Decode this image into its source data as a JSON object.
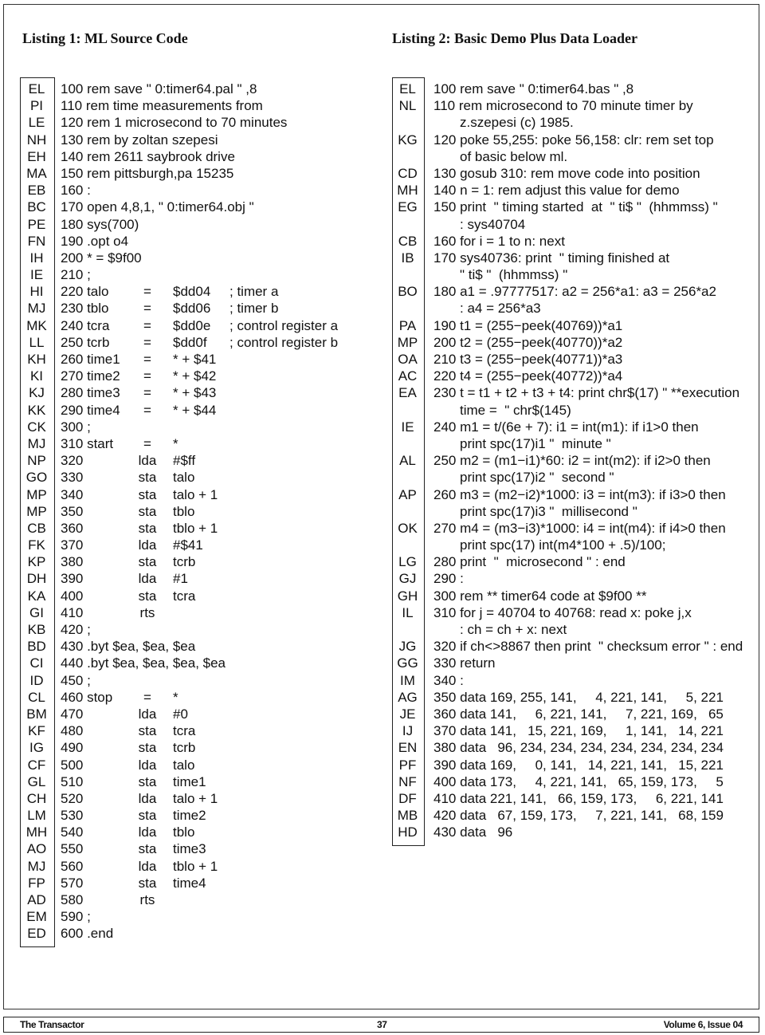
{
  "listing1": {
    "title": "Listing 1: ML Source Code",
    "rows": [
      {
        "cs": "EL",
        "t": "100 rem save \" 0:timer64.pal \" ,8"
      },
      {
        "cs": "PI",
        "t": "110 rem time measurements from"
      },
      {
        "cs": "LE",
        "t": "120 rem 1 microsecond to 70 minutes"
      },
      {
        "cs": "NH",
        "t": "130 rem by zoltan szepesi"
      },
      {
        "cs": "EH",
        "t": "140 rem 2611 saybrook drive"
      },
      {
        "cs": "MA",
        "t": "150 rem pittsburgh,pa 15235"
      },
      {
        "cs": "EB",
        "t": "160 :"
      },
      {
        "cs": "BC",
        "t": "170 open 4,8,1, \" 0:timer64.obj \""
      },
      {
        "cs": "PE",
        "t": "180 sys(700)"
      },
      {
        "cs": "FN",
        "t": "190 .opt o4"
      },
      {
        "cs": "IH",
        "t": "200 * = $9f00"
      },
      {
        "cs": "IE",
        "t": "210 ;"
      },
      {
        "cs": "HI",
        "t": "220 talo",
        "op": "=",
        "arg": "$dd04",
        "cm": "; timer a"
      },
      {
        "cs": "MJ",
        "t": "230 tblo",
        "op": "=",
        "arg": "$dd06",
        "cm": "; timer b"
      },
      {
        "cs": "MK",
        "t": "240 tcra",
        "op": "=",
        "arg": "$dd0e",
        "cm": "; control register a"
      },
      {
        "cs": "LL",
        "t": "250 tcrb",
        "op": "=",
        "arg": "$dd0f",
        "cm": "; control register b"
      },
      {
        "cs": "KH",
        "t": "260 time1",
        "op": "=",
        "arg": "* + $41"
      },
      {
        "cs": "KI",
        "t": "270 time2",
        "op": "=",
        "arg": "* + $42"
      },
      {
        "cs": "KJ",
        "t": "280 time3",
        "op": "=",
        "arg": "* + $43"
      },
      {
        "cs": "KK",
        "t": "290 time4",
        "op": "=",
        "arg": "* + $44"
      },
      {
        "cs": "CK",
        "t": "300 ;"
      },
      {
        "cs": "MJ",
        "t": "310 start",
        "op": "=",
        "arg": "*"
      },
      {
        "cs": "NP",
        "t": "320",
        "op": "lda",
        "arg": "#$ff"
      },
      {
        "cs": "GO",
        "t": "330",
        "op": "sta",
        "arg": "talo"
      },
      {
        "cs": "MP",
        "t": "340",
        "op": "sta",
        "arg": "talo + 1"
      },
      {
        "cs": "MP",
        "t": "350",
        "op": "sta",
        "arg": "tblo"
      },
      {
        "cs": "CB",
        "t": "360",
        "op": "sta",
        "arg": "tblo + 1"
      },
      {
        "cs": "FK",
        "t": "370",
        "op": "lda",
        "arg": "#$41"
      },
      {
        "cs": "KP",
        "t": "380",
        "op": "sta",
        "arg": "tcrb"
      },
      {
        "cs": "DH",
        "t": "390",
        "op": "lda",
        "arg": "#1"
      },
      {
        "cs": "KA",
        "t": "400",
        "op": "sta",
        "arg": "tcra"
      },
      {
        "cs": "GI",
        "t": "410",
        "op": "rts"
      },
      {
        "cs": "KB",
        "t": "420 ;"
      },
      {
        "cs": "BD",
        "t": "430 .byt $ea, $ea, $ea"
      },
      {
        "cs": "CI",
        "t": "440 .byt $ea, $ea, $ea, $ea"
      },
      {
        "cs": "ID",
        "t": "450 ;"
      },
      {
        "cs": "CL",
        "t": "460 stop",
        "op": "=",
        "arg": "*"
      },
      {
        "cs": "BM",
        "t": "470",
        "op": "lda",
        "arg": "#0"
      },
      {
        "cs": "KF",
        "t": "480",
        "op": "sta",
        "arg": "tcra"
      },
      {
        "cs": "IG",
        "t": "490",
        "op": "sta",
        "arg": "tcrb"
      },
      {
        "cs": "CF",
        "t": "500",
        "op": "lda",
        "arg": "talo"
      },
      {
        "cs": "GL",
        "t": "510",
        "op": "sta",
        "arg": "time1"
      },
      {
        "cs": "CH",
        "t": "520",
        "op": "lda",
        "arg": "talo + 1"
      },
      {
        "cs": "LM",
        "t": "530",
        "op": "sta",
        "arg": "time2"
      },
      {
        "cs": "MH",
        "t": "540",
        "op": "lda",
        "arg": "tblo"
      },
      {
        "cs": "AO",
        "t": "550",
        "op": "sta",
        "arg": "time3"
      },
      {
        "cs": "MJ",
        "t": "560",
        "op": "lda",
        "arg": "tblo + 1"
      },
      {
        "cs": "FP",
        "t": "570",
        "op": "sta",
        "arg": "time4"
      },
      {
        "cs": "AD",
        "t": "580",
        "op": "rts"
      },
      {
        "cs": "EM",
        "t": "590 ;"
      },
      {
        "cs": "ED",
        "t": "600 .end"
      }
    ]
  },
  "listing2": {
    "title": "Listing 2: Basic Demo Plus Data Loader",
    "rows": [
      {
        "cs": "EL",
        "lines": [
          "100 rem save \" 0:timer64.bas \" ,8"
        ]
      },
      {
        "cs": "NL",
        "lines": [
          "110 rem microsecond to 70 minute timer by",
          "z.szepesi (c) 1985."
        ]
      },
      {
        "cs": "KG",
        "lines": [
          "120 poke 55,255: poke 56,158: clr: rem set top",
          "of basic below ml."
        ]
      },
      {
        "cs": "CD",
        "lines": [
          "130 gosub 310: rem move code into position"
        ]
      },
      {
        "cs": "MH",
        "lines": [
          "140 n = 1: rem adjust this value for demo"
        ]
      },
      {
        "cs": "EG",
        "lines": [
          "150 print  \" timing started  at  \" ti$ \"  (hhmmss) \"",
          ": sys40704"
        ]
      },
      {
        "cs": "CB",
        "lines": [
          "160 for i = 1 to n: next"
        ]
      },
      {
        "cs": "IB",
        "lines": [
          "170 sys40736: print  \" timing finished at",
          "\" ti$ \"  (hhmmss) \""
        ]
      },
      {
        "cs": "BO",
        "lines": [
          "180 a1 = .97777517: a2 = 256*a1: a3 = 256*a2",
          ": a4 = 256*a3"
        ]
      },
      {
        "cs": "PA",
        "lines": [
          "190 t1 = (255−peek(40769))*a1"
        ]
      },
      {
        "cs": "MP",
        "lines": [
          "200 t2 = (255−peek(40770))*a2"
        ]
      },
      {
        "cs": "OA",
        "lines": [
          "210 t3 = (255−peek(40771))*a3"
        ]
      },
      {
        "cs": "AC",
        "lines": [
          "220 t4 = (255−peek(40772))*a4"
        ]
      },
      {
        "cs": "EA",
        "lines": [
          "230 t = t1 + t2 + t3 + t4: print chr$(17) \" **execution",
          "time =  \" chr$(145)"
        ]
      },
      {
        "cs": "IE",
        "lines": [
          "240 m1 = t/(6e + 7): i1 = int(m1): if i1>0 then",
          "print spc(17)i1 \"  minute \""
        ]
      },
      {
        "cs": "AL",
        "lines": [
          "250 m2 = (m1−i1)*60: i2 = int(m2): if i2>0 then",
          "print spc(17)i2 \"  second \""
        ]
      },
      {
        "cs": "AP",
        "lines": [
          "260 m3 = (m2−i2)*1000: i3 = int(m3): if i3>0 then",
          "print spc(17)i3 \"  millisecond \""
        ]
      },
      {
        "cs": "OK",
        "lines": [
          "270 m4 = (m3−i3)*1000: i4 = int(m4): if i4>0 then",
          "print spc(17) int(m4*100 + .5)/100;"
        ]
      },
      {
        "cs": "LG",
        "lines": [
          "280 print  \"  microsecond \" : end"
        ]
      },
      {
        "cs": "GJ",
        "lines": [
          "290 :"
        ]
      },
      {
        "cs": "GH",
        "lines": [
          "300 rem ** timer64 code at $9f00 **"
        ]
      },
      {
        "cs": "IL",
        "lines": [
          "310 for j = 40704 to 40768: read x: poke j,x",
          ": ch = ch + x: next"
        ]
      },
      {
        "cs": "JG",
        "lines": [
          "320 if ch<>8867 then print  \" checksum error \" : end"
        ]
      },
      {
        "cs": "GG",
        "lines": [
          "330 return"
        ]
      },
      {
        "cs": "IM",
        "lines": [
          "340 :"
        ]
      },
      {
        "cs": "AG",
        "lines": [
          "350 data 169, 255, 141,     4, 221, 141,     5, 221"
        ]
      },
      {
        "cs": "JE",
        "lines": [
          "360 data 141,     6, 221, 141,     7, 221, 169,   65"
        ]
      },
      {
        "cs": "IJ",
        "lines": [
          "370 data 141,   15, 221, 169,     1, 141,   14, 221"
        ]
      },
      {
        "cs": "EN",
        "lines": [
          "380 data   96, 234, 234, 234, 234, 234, 234, 234"
        ]
      },
      {
        "cs": "PF",
        "lines": [
          "390 data 169,     0, 141,   14, 221, 141,   15, 221"
        ]
      },
      {
        "cs": "NF",
        "lines": [
          "400 data 173,     4, 221, 141,   65, 159, 173,     5"
        ]
      },
      {
        "cs": "DF",
        "lines": [
          "410 data 221, 141,   66, 159, 173,     6, 221, 141"
        ]
      },
      {
        "cs": "MB",
        "lines": [
          "420 data   67, 159, 173,     7, 221, 141,   68, 159"
        ]
      },
      {
        "cs": "HD",
        "lines": [
          "430 data   96"
        ]
      }
    ]
  },
  "footer": {
    "publication": "The Transactor",
    "page_number": "37",
    "issue": "Volume 6, Issue 04"
  }
}
